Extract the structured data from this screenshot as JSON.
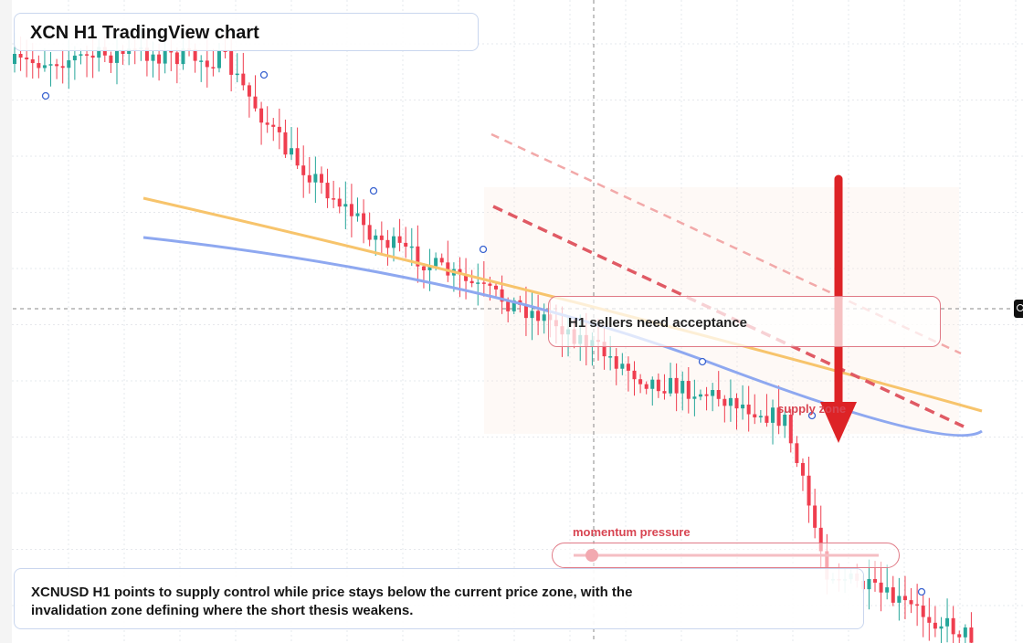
{
  "title": "XCN H1 TradingView chart",
  "callout": "H1 sellers need acceptance",
  "zone_label": "supply zone",
  "momentum": {
    "label": "momentum pressure",
    "level": 0.06
  },
  "summary": "XCNUSD H1 points to supply control while price stays below the current price zone, with the invalidation zone defining where the short thesis weakens.",
  "price_marker_icon": "alert-clock-icon",
  "colors": {
    "bull": "#26a69a",
    "bear": "#ef3e4f",
    "ma_fast": "#f7c46c",
    "ma_slow": "#8ea8f0",
    "trend": "#e05a64",
    "arrow": "#dd2326"
  },
  "chart_data": {
    "type": "candlestick",
    "timeframe": "H1",
    "symbol": "XCNUSD",
    "grid": true,
    "price_trend": [
      {
        "bar": 0,
        "price": 0.0
      },
      {
        "bar": 20,
        "price": 2.0
      },
      {
        "bar": 35,
        "price": 0.5
      },
      {
        "bar": 45,
        "price": -15
      },
      {
        "bar": 60,
        "price": -30
      },
      {
        "bar": 75,
        "price": -38
      },
      {
        "bar": 90,
        "price": -45
      },
      {
        "bar": 105,
        "price": -55
      },
      {
        "bar": 118,
        "price": -58
      },
      {
        "bar": 128,
        "price": -62
      },
      {
        "bar": 135,
        "price": -88
      },
      {
        "bar": 150,
        "price": -95
      },
      {
        "bar": 160,
        "price": -100
      }
    ]
  }
}
